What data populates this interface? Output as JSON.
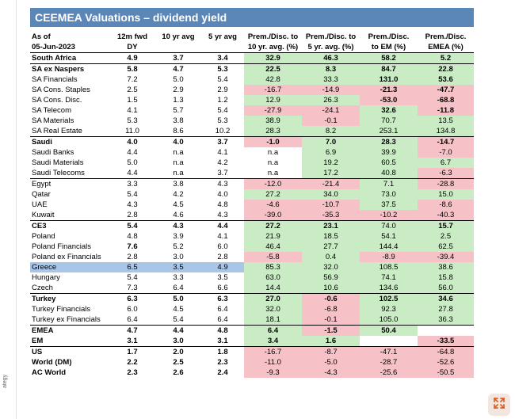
{
  "title": "CEEMEA Valuations – dividend yield",
  "side_text": "ategy",
  "header": {
    "row1": [
      "As of",
      "12m fwd",
      "10 yr avg",
      "5 yr avg",
      "Prem./Disc. to",
      "Prem./Disc. to",
      "Prem./Disc.",
      "Prem./Disc."
    ],
    "row2": [
      "05-Jun-2023",
      "DY",
      "",
      "",
      "10 yr. avg. (%)",
      "5 yr. avg. (%)",
      "to EM (%)",
      "EMEA (%)"
    ]
  },
  "colors": {
    "positive": "#c9ecc4",
    "negative": "#f6c2c7",
    "title_bg": "#5b86b8",
    "selected": "#a9c5e8"
  },
  "rows": [
    {
      "name": "South Africa",
      "dy": "4.9",
      "avg10": "3.7",
      "avg5": "3.4",
      "p10": "32.9",
      "p5": "46.3",
      "pem": "58.2",
      "pemea": "5.2",
      "bold": true,
      "sep": true,
      "c": [
        "g",
        "g",
        "g",
        "g"
      ]
    },
    {
      "name": "SA ex Naspers",
      "dy": "5.8",
      "avg10": "4.7",
      "avg5": "5.3",
      "p10": "22.5",
      "p5": "8.3",
      "pem": "84.7",
      "pemea": "22.8",
      "bold": true,
      "sep": true,
      "c": [
        "g",
        "g",
        "g",
        "g"
      ]
    },
    {
      "name": "SA Financials",
      "dy": "7.2",
      "avg10": "5.0",
      "avg5": "5.4",
      "p10": "42.8",
      "p5": "33.3",
      "pem": "131.0",
      "pemea": "53.6",
      "c": [
        "g",
        "g",
        "g",
        "g"
      ],
      "b": [
        false,
        false,
        true,
        true
      ]
    },
    {
      "name": "SA Cons. Staples",
      "dy": "2.5",
      "avg10": "2.9",
      "avg5": "2.9",
      "p10": "-16.7",
      "p5": "-14.9",
      "pem": "-21.3",
      "pemea": "-47.7",
      "c": [
        "r",
        "r",
        "r",
        "r"
      ],
      "b": [
        false,
        false,
        true,
        true
      ]
    },
    {
      "name": "SA Cons. Disc.",
      "dy": "1.5",
      "avg10": "1.3",
      "avg5": "1.2",
      "p10": "12.9",
      "p5": "26.3",
      "pem": "-53.0",
      "pemea": "-68.8",
      "c": [
        "g",
        "g",
        "r",
        "r"
      ],
      "b": [
        false,
        false,
        true,
        true
      ]
    },
    {
      "name": "SA Telecom",
      "dy": "4.1",
      "avg10": "5.7",
      "avg5": "5.4",
      "p10": "-27.9",
      "p5": "-24.1",
      "pem": "32.6",
      "pemea": "-11.8",
      "c": [
        "r",
        "r",
        "g",
        "r"
      ],
      "b": [
        false,
        false,
        true,
        true
      ]
    },
    {
      "name": "SA Materials",
      "dy": "5.3",
      "avg10": "3.8",
      "avg5": "5.3",
      "p10": "38.9",
      "p5": "-0.1",
      "pem": "70.7",
      "pemea": "13.5",
      "c": [
        "g",
        "r",
        "g",
        "g"
      ]
    },
    {
      "name": "SA Real Estate",
      "dy": "11.0",
      "avg10": "8.6",
      "avg5": "10.2",
      "p10": "28.3",
      "p5": "8.2",
      "pem": "253.1",
      "pemea": "134.8",
      "c": [
        "g",
        "g",
        "g",
        "g"
      ]
    },
    {
      "name": "Saudi",
      "dy": "4.0",
      "avg10": "4.0",
      "avg5": "3.7",
      "p10": "-1.0",
      "p5": "7.0",
      "pem": "28.3",
      "pemea": "-14.7",
      "bold": true,
      "sep": true,
      "c": [
        "r",
        "g",
        "g",
        "r"
      ]
    },
    {
      "name": "Saudi Banks",
      "dy": "4.4",
      "avg10": "n.a",
      "avg5": "4.1",
      "p10": "n.a",
      "p5": "6.9",
      "pem": "39.9",
      "pemea": "-7.0",
      "c": [
        "",
        "g",
        "g",
        "r"
      ]
    },
    {
      "name": "Saudi Materials",
      "dy": "5.0",
      "avg10": "n.a",
      "avg5": "4.2",
      "p10": "n.a",
      "p5": "19.2",
      "pem": "60.5",
      "pemea": "6.7",
      "c": [
        "",
        "g",
        "g",
        "g"
      ]
    },
    {
      "name": "Saudi Telecoms",
      "dy": "4.4",
      "avg10": "n.a",
      "avg5": "3.7",
      "p10": "n.a",
      "p5": "17.2",
      "pem": "40.8",
      "pemea": "-6.3",
      "c": [
        "",
        "g",
        "g",
        "r"
      ]
    },
    {
      "name": "Egypt",
      "dy": "3.3",
      "avg10": "3.8",
      "avg5": "4.3",
      "p10": "-12.0",
      "p5": "-21.4",
      "pem": "7.1",
      "pemea": "-28.8",
      "sep": true,
      "c": [
        "r",
        "r",
        "g",
        "r"
      ]
    },
    {
      "name": "Qatar",
      "dy": "5.4",
      "avg10": "4.2",
      "avg5": "4.0",
      "p10": "27.2",
      "p5": "34.0",
      "pem": "73.0",
      "pemea": "15.0",
      "c": [
        "g",
        "g",
        "g",
        "g"
      ]
    },
    {
      "name": "UAE",
      "dy": "4.3",
      "avg10": "4.5",
      "avg5": "4.8",
      "p10": "-4.6",
      "p5": "-10.7",
      "pem": "37.5",
      "pemea": "-8.6",
      "c": [
        "r",
        "r",
        "g",
        "r"
      ]
    },
    {
      "name": "Kuwait",
      "dy": "2.8",
      "avg10": "4.6",
      "avg5": "4.3",
      "p10": "-39.0",
      "p5": "-35.3",
      "pem": "-10.2",
      "pemea": "-40.3",
      "c": [
        "r",
        "r",
        "r",
        "r"
      ]
    },
    {
      "name": "CE3",
      "dy": "5.4",
      "avg10": "4.3",
      "avg5": "4.4",
      "p10": "27.2",
      "p5": "23.1",
      "pem": "74.0",
      "pemea": "15.7",
      "bold": true,
      "sep": true,
      "c": [
        "g",
        "g",
        "g",
        "g"
      ],
      "b": [
        true,
        true,
        false,
        true
      ]
    },
    {
      "name": "Poland",
      "dy": "4.8",
      "avg10": "3.9",
      "avg5": "4.1",
      "p10": "21.9",
      "p5": "18.5",
      "pem": "54.1",
      "pemea": "2.5",
      "c": [
        "g",
        "g",
        "g",
        "g"
      ]
    },
    {
      "name": "Poland Financials",
      "dy": "7.6",
      "avg10": "5.2",
      "avg5": "6.0",
      "p10": "46.4",
      "p5": "27.7",
      "pem": "144.4",
      "pemea": "62.5",
      "c": [
        "g",
        "g",
        "g",
        "g"
      ],
      "b": [
        false,
        false,
        false,
        false
      ],
      "dyb": true
    },
    {
      "name": "Poland ex Financials",
      "dy": "2.8",
      "avg10": "3.0",
      "avg5": "2.8",
      "p10": "-5.8",
      "p5": "0.4",
      "pem": "-8.9",
      "pemea": "-39.4",
      "c": [
        "r",
        "g",
        "r",
        "r"
      ]
    },
    {
      "name": "Greece",
      "dy": "6.5",
      "avg10": "3.5",
      "avg5": "4.9",
      "p10": "85.3",
      "p5": "32.0",
      "pem": "108.5",
      "pemea": "38.6",
      "sel": true,
      "c": [
        "g",
        "g",
        "g",
        "g"
      ]
    },
    {
      "name": "Hungary",
      "dy": "5.4",
      "avg10": "3.3",
      "avg5": "3.5",
      "p10": "63.0",
      "p5": "56.9",
      "pem": "74.1",
      "pemea": "15.8",
      "c": [
        "g",
        "g",
        "g",
        "g"
      ]
    },
    {
      "name": "Czech",
      "dy": "7.3",
      "avg10": "6.4",
      "avg5": "6.6",
      "p10": "14.4",
      "p5": "10.6",
      "pem": "134.6",
      "pemea": "56.0",
      "c": [
        "g",
        "g",
        "g",
        "g"
      ]
    },
    {
      "name": "Turkey",
      "dy": "6.3",
      "avg10": "5.0",
      "avg5": "6.3",
      "p10": "27.0",
      "p5": "-0.6",
      "pem": "102.5",
      "pemea": "34.6",
      "bold": true,
      "sep": true,
      "c": [
        "g",
        "r",
        "g",
        "g"
      ]
    },
    {
      "name": "Turkey Financials",
      "dy": "6.0",
      "avg10": "4.5",
      "avg5": "6.4",
      "p10": "32.0",
      "p5": "-6.8",
      "pem": "92.3",
      "pemea": "27.8",
      "c": [
        "g",
        "r",
        "g",
        "g"
      ]
    },
    {
      "name": "Turkey ex Financials",
      "dy": "6.4",
      "avg10": "5.4",
      "avg5": "6.4",
      "p10": "18.1",
      "p5": "-0.1",
      "pem": "105.0",
      "pemea": "36.3",
      "c": [
        "g",
        "r",
        "g",
        "g"
      ]
    },
    {
      "name": "EMEA",
      "dy": "4.7",
      "avg10": "4.4",
      "avg5": "4.8",
      "p10": "6.4",
      "p5": "-1.5",
      "pem": "50.4",
      "pemea": "",
      "bold": true,
      "sep": true,
      "c": [
        "g",
        "r",
        "g",
        ""
      ]
    },
    {
      "name": "EM",
      "dy": "3.1",
      "avg10": "3.0",
      "avg5": "3.1",
      "p10": "3.4",
      "p5": "1.6",
      "pem": "",
      "pemea": "-33.5",
      "bold": true,
      "c": [
        "g",
        "g",
        "",
        "r"
      ]
    },
    {
      "name": "US",
      "dy": "1.7",
      "avg10": "2.0",
      "avg5": "1.8",
      "p10": "-16.7",
      "p5": "-8.7",
      "pem": "-47.1",
      "pemea": "-64.8",
      "bold": true,
      "sep": true,
      "c": [
        "r",
        "r",
        "r",
        "r"
      ],
      "b": [
        false,
        false,
        false,
        false
      ]
    },
    {
      "name": "World (DM)",
      "dy": "2.2",
      "avg10": "2.5",
      "avg5": "2.3",
      "p10": "-11.0",
      "p5": "-5.0",
      "pem": "-28.7",
      "pemea": "-52.6",
      "bold": true,
      "c": [
        "r",
        "r",
        "r",
        "r"
      ],
      "b": [
        false,
        false,
        false,
        false
      ]
    },
    {
      "name": "AC World",
      "dy": "2.3",
      "avg10": "2.6",
      "avg5": "2.4",
      "p10": "-9.3",
      "p5": "-4.3",
      "pem": "-25.6",
      "pemea": "-50.5",
      "bold": true,
      "c": [
        "r",
        "r",
        "r",
        "r"
      ],
      "b": [
        false,
        false,
        false,
        false
      ]
    }
  ]
}
